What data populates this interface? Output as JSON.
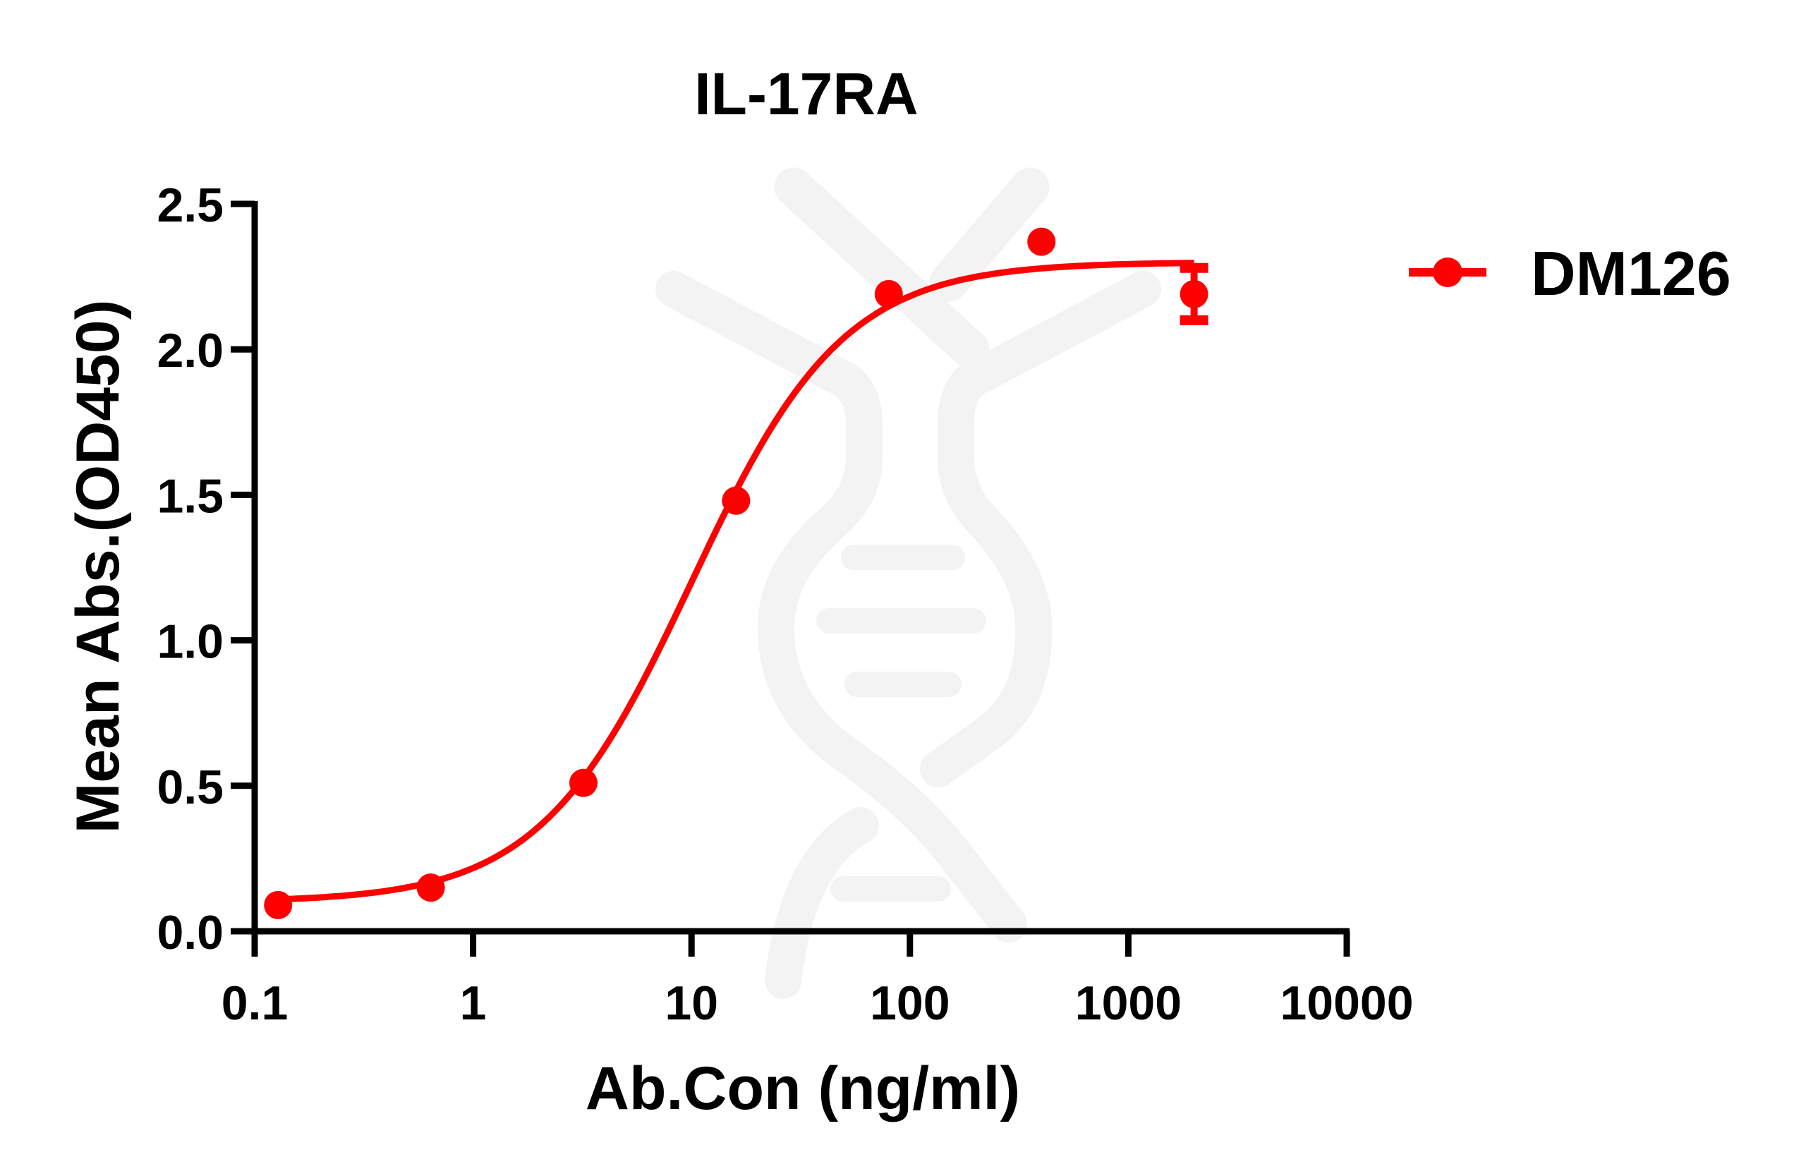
{
  "chart_data": {
    "type": "scatter",
    "title": "IL-17RA",
    "xlabel": "Ab.Con (ng/ml)",
    "ylabel": "Mean Abs.(OD450)",
    "xscale": "log",
    "xlim": [
      0.1,
      10000
    ],
    "ylim": [
      0,
      2.5
    ],
    "x_ticks": [
      "0.1",
      "1",
      "10",
      "100",
      "1000",
      "10000"
    ],
    "x_tick_values": [
      0.1,
      1,
      10,
      100,
      1000,
      10000
    ],
    "y_ticks": [
      "0.0",
      "0.5",
      "1.0",
      "1.5",
      "2.0",
      "2.5"
    ],
    "y_tick_values": [
      0,
      0.5,
      1.0,
      1.5,
      2.0,
      2.5
    ],
    "grid": false,
    "legend_position": "right-top",
    "series": [
      {
        "name": "DM126",
        "color": "#ff0000",
        "marker": "circle",
        "x": [
          0.128,
          0.64,
          3.2,
          16,
          80,
          400,
          2000
        ],
        "y": [
          0.09,
          0.15,
          0.51,
          1.48,
          2.19,
          2.37,
          2.19
        ],
        "error": [
          0,
          0,
          0,
          0,
          0,
          0,
          0.09
        ],
        "fit": {
          "model": "4PL",
          "bottom": 0.1,
          "top": 2.3,
          "ec50": 10,
          "hill": 1.25
        }
      }
    ]
  },
  "legend": {
    "items": [
      {
        "label": "DM126",
        "color": "#ff0000"
      }
    ]
  }
}
